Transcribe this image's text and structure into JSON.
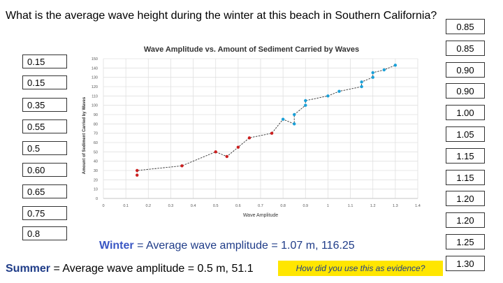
{
  "question": "What is the average wave height during the winter at this beach in Southern California?",
  "left_values": [
    "0.15",
    "0.15",
    "0.35",
    "0.55",
    "0.5",
    "0.60",
    "0.65",
    "0.75",
    "0.8"
  ],
  "right_values": [
    "0.85",
    "0.85",
    "0.90",
    "0.90",
    "1.00",
    "1.05",
    "1.15",
    "1.15",
    "1.20",
    "1.20",
    "1.25",
    "1.30"
  ],
  "winter_label": "Winter",
  "winter_text": " = Average wave amplitude = 1.07 m, 116.25",
  "summer_label": "Summer",
  "summer_text": " = Average wave amplitude = 0.5 m, 51.1",
  "evidence_prompt": "How did you use this as evidence?",
  "colors": {
    "summer_points": "#cc1f1f",
    "winter_points": "#1aa0d8",
    "line": "#333333",
    "highlight": "#ffe600",
    "text_blue": "#1f3c88"
  },
  "chart_data": {
    "type": "scatter",
    "title": "Wave Amplitude vs. Amount of Sediment Carried by Waves",
    "xlabel": "Wave Amplitude",
    "ylabel": "Amount of Sediment Carried by Waves",
    "xlim": [
      0,
      1.4
    ],
    "ylim": [
      0,
      150
    ],
    "xticks": [
      "0",
      "0.1",
      "0.2",
      "0.3",
      "0.4",
      "0.5",
      "0.6",
      "0.7",
      "0.8",
      "0.9",
      "1",
      "1.1",
      "1.2",
      "1.3",
      "1.4"
    ],
    "yticks": [
      "0",
      "10",
      "20",
      "30",
      "40",
      "50",
      "60",
      "70",
      "80",
      "90",
      "100",
      "110",
      "120",
      "130",
      "140",
      "150"
    ],
    "grid": true,
    "series": [
      {
        "color": "#cc1f1f",
        "x": [
          0.15,
          0.15,
          0.35,
          0.5,
          0.55,
          0.6,
          0.65,
          0.75
        ],
        "y": [
          25,
          30,
          35,
          50,
          45,
          55,
          65,
          70
        ]
      },
      {
        "color": "#1aa0d8",
        "x": [
          0.8,
          0.85,
          0.85,
          0.9,
          0.9,
          1.0,
          1.05,
          1.15,
          1.15,
          1.2,
          1.2,
          1.25,
          1.3
        ],
        "y": [
          85,
          80,
          90,
          100,
          105,
          110,
          115,
          120,
          125,
          130,
          135,
          138,
          143
        ]
      }
    ]
  }
}
